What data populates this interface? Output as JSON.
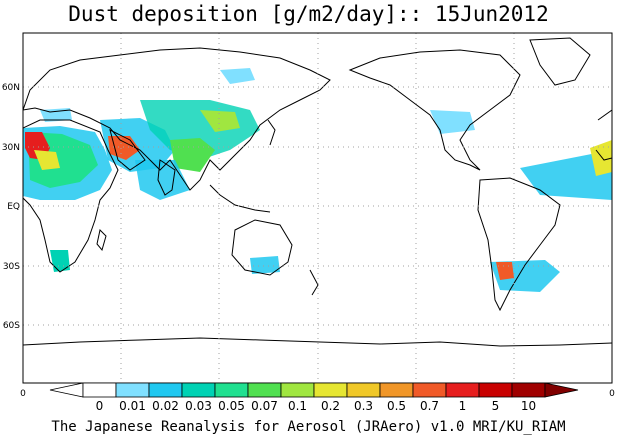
{
  "title": "Dust deposition [g/m2/day]:: 15Jun2012",
  "footer": "The Japanese Reanalysis for Aerosol (JRAero) v1.0 MRI/KU_RIAM",
  "lat_labels": [
    "60N",
    "30N",
    "EQ",
    "30S",
    "60S"
  ],
  "lon_labels": [
    "0",
    "0"
  ],
  "colorbar": {
    "labels": [
      "0",
      "0.01",
      "0.02",
      "0.03",
      "0.05",
      "0.07",
      "0.1",
      "0.2",
      "0.3",
      "0.5",
      "0.7",
      "1",
      "5",
      "10"
    ],
    "colors": [
      "#ffffff",
      "#ffffff",
      "#80e0ff",
      "#20c8f0",
      "#00d2b4",
      "#20e090",
      "#50e050",
      "#a0e640",
      "#e6e632",
      "#f0c828",
      "#f09628",
      "#f05a28",
      "#e61e1e",
      "#c80000",
      "#a00000",
      "#800000"
    ]
  },
  "colors": {
    "land_outline": "#000000",
    "grid": "#a0a0a0"
  }
}
